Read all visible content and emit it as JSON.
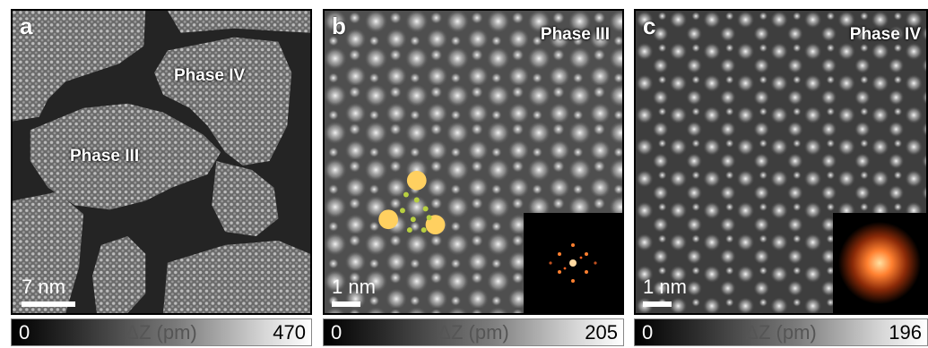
{
  "panels": [
    {
      "letter": "a",
      "labels": [
        "Phase IV",
        "Phase III"
      ],
      "scale": "7 nm",
      "colorbar": {
        "min": "0",
        "label": "ΔZ (pm)",
        "max": "470"
      }
    },
    {
      "letter": "b",
      "labels": [
        "Phase III"
      ],
      "scale": "1 nm",
      "inset": "fft-inset",
      "colorbar": {
        "min": "0",
        "label": "ΔZ (pm)",
        "max": "205"
      }
    },
    {
      "letter": "c",
      "labels": [
        "Phase IV"
      ],
      "scale": "1 nm",
      "inset": "fft-inset",
      "colorbar": {
        "min": "0",
        "label": "ΔZ (pm)",
        "max": "196"
      }
    }
  ],
  "colors": {
    "molecule_marker": "#ffd060",
    "small_marker": "#b8d040",
    "fft_spot": "#ff8030"
  }
}
